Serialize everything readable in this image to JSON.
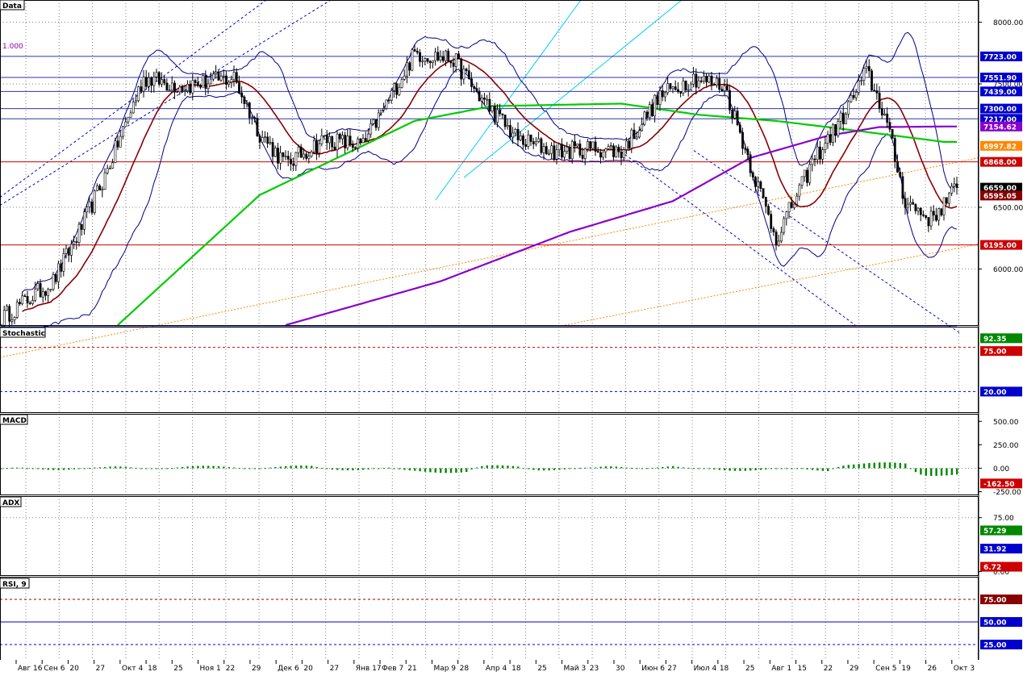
{
  "panels": {
    "price": {
      "title": "Data",
      "level_label": "1.000"
    },
    "stoch": {
      "title": "Stochastic"
    },
    "macd": {
      "title": "MACD"
    },
    "adx": {
      "title": "ADX"
    },
    "rsi": {
      "title": "RSI, 9"
    }
  },
  "colors": {
    "bg": "#ffffff",
    "grid": "#808080",
    "candle": "#000000",
    "axis_badge_blue": "#0000cc",
    "red": "#cc0000",
    "darkred": "#880000",
    "green": "#00cc00",
    "purple": "#8800cc",
    "orange": "#ff8800",
    "blue": "#0000cc",
    "cyan": "#00ccff"
  },
  "chart_data": [
    {
      "panel": "price",
      "type": "candlestick",
      "ylim": [
        5545,
        8180
      ],
      "y_ticks": [
        "8000.00",
        "7500.00",
        "6500.00",
        "6000.00"
      ],
      "x_ticks": [
        "Авг 16",
        "Сен 6",
        "20",
        "27",
        "Окт 4",
        "18",
        "25",
        "Ноя 1",
        "22",
        "29",
        "Дек 6",
        "20",
        "27",
        "Янв 17",
        "Фев 7",
        "21",
        "Мар 9",
        "28",
        "Апр 4",
        "18",
        "25",
        "Май 3",
        "23",
        "30",
        "Июн 6",
        "27",
        "Июл 4",
        "18",
        "25",
        "Авг 1",
        "15",
        "22",
        "29",
        "Сен 5",
        "19",
        "26",
        "Окт 3"
      ],
      "price_labels": [
        {
          "text": "7723.00",
          "value": 7723,
          "color": "#0000cc"
        },
        {
          "text": "7551.90",
          "value": 7551.9,
          "color": "#0000cc"
        },
        {
          "text": "7439.00",
          "value": 7439,
          "color": "#0000cc"
        },
        {
          "text": "7300.00",
          "value": 7300,
          "color": "#0000cc"
        },
        {
          "text": "7217.00",
          "value": 7217,
          "color": "#0000cc"
        },
        {
          "text": "7154.62",
          "value": 7154.62,
          "color": "#8800cc"
        },
        {
          "text": "6997.82",
          "value": 6997.82,
          "color": "#ff8800"
        },
        {
          "text": "6868.00",
          "value": 6868,
          "color": "#cc0000"
        },
        {
          "text": "6659.00",
          "value": 6659,
          "color": "#000000"
        },
        {
          "text": "6595.05",
          "value": 6595.05,
          "color": "#880000"
        },
        {
          "text": "6195.00",
          "value": 6195,
          "color": "#cc0000"
        }
      ],
      "horizontal_lines": [
        {
          "value": 7723,
          "color": "#3333aa"
        },
        {
          "value": 7551.9,
          "color": "#3333aa"
        },
        {
          "value": 7439,
          "color": "#3333aa"
        },
        {
          "value": 7300,
          "color": "#3333aa"
        },
        {
          "value": 7217,
          "color": "#3333aa"
        },
        {
          "value": 6868,
          "color": "#cc0000"
        },
        {
          "value": 6195,
          "color": "#cc0000"
        }
      ],
      "close_anchors": [
        [
          0,
          5600
        ],
        [
          20,
          5900
        ],
        [
          30,
          6300
        ],
        [
          40,
          6750
        ],
        [
          55,
          7550
        ],
        [
          70,
          7480
        ],
        [
          90,
          7550
        ],
        [
          100,
          7100
        ],
        [
          110,
          6850
        ],
        [
          125,
          7050
        ],
        [
          140,
          7000
        ],
        [
          160,
          7750
        ],
        [
          175,
          7700
        ],
        [
          185,
          7400
        ],
        [
          200,
          7050
        ],
        [
          215,
          6950
        ],
        [
          230,
          6980
        ],
        [
          240,
          6950
        ],
        [
          255,
          7400
        ],
        [
          268,
          7550
        ],
        [
          280,
          7480
        ],
        [
          290,
          6850
        ],
        [
          300,
          6250
        ],
        [
          315,
          6900
        ],
        [
          325,
          7200
        ],
        [
          335,
          7600
        ],
        [
          342,
          7250
        ],
        [
          350,
          6550
        ],
        [
          360,
          6400
        ],
        [
          370,
          6659
        ]
      ],
      "last_close": 6659,
      "moving_averages": [
        {
          "name": "",
          "color": "#00cc00",
          "anchors": [
            [
              45,
              5545
            ],
            [
              100,
              6600
            ],
            [
              160,
              7200
            ],
            [
              190,
              7320
            ],
            [
              240,
              7340
            ],
            [
              270,
              7250
            ],
            [
              300,
              7200
            ],
            [
              320,
              7150
            ],
            [
              365,
              7030
            ]
          ]
        },
        {
          "name": "",
          "color": "#8800cc",
          "anchors": [
            [
              110,
              5545
            ],
            [
              170,
              5900
            ],
            [
              220,
              6300
            ],
            [
              260,
              6550
            ],
            [
              290,
              6900
            ],
            [
              320,
              7080
            ],
            [
              340,
              7150
            ],
            [
              365,
              7154.62
            ]
          ]
        }
      ]
    },
    {
      "panel": "stochastic",
      "type": "line",
      "ylim": [
        -8,
        108
      ],
      "levels": [
        80,
        20
      ],
      "axis_labels": [
        {
          "text": "92.35",
          "value": 92.35,
          "color": "#008800"
        },
        {
          "text": "75.00",
          "value": 75,
          "color": "#cc0000"
        },
        {
          "text": "20.00",
          "value": 20,
          "color": "#0000cc"
        }
      ],
      "last_value": 92.35
    },
    {
      "panel": "macd",
      "type": "line+bar",
      "ylim": [
        -280,
        580
      ],
      "y_ticks": [
        "500.00",
        "250.00",
        "0.00",
        "-250.00"
      ],
      "axis_labels": [
        {
          "text": "-162.50",
          "value": -162.5,
          "color": "#cc0000"
        }
      ]
    },
    {
      "panel": "adx",
      "type": "line",
      "ylim": [
        -5,
        105
      ],
      "y_ticks": [
        "75.00",
        "0.00"
      ],
      "axis_labels": [
        {
          "text": "57.29",
          "value": 57.29,
          "color": "#008800"
        },
        {
          "text": "31.92",
          "value": 31.92,
          "color": "#0000cc"
        },
        {
          "text": "6.72",
          "value": 6.72,
          "color": "#cc0000"
        }
      ]
    },
    {
      "panel": "rsi",
      "type": "line",
      "ylim": [
        8,
        100
      ],
      "axis_labels": [
        {
          "text": "75.00",
          "value": 75,
          "color": "#880000"
        },
        {
          "text": "50.00",
          "value": 50,
          "color": "#0000cc"
        },
        {
          "text": "25.00",
          "value": 25,
          "color": "#0000cc"
        }
      ],
      "levels": [
        75,
        50,
        25
      ]
    }
  ]
}
